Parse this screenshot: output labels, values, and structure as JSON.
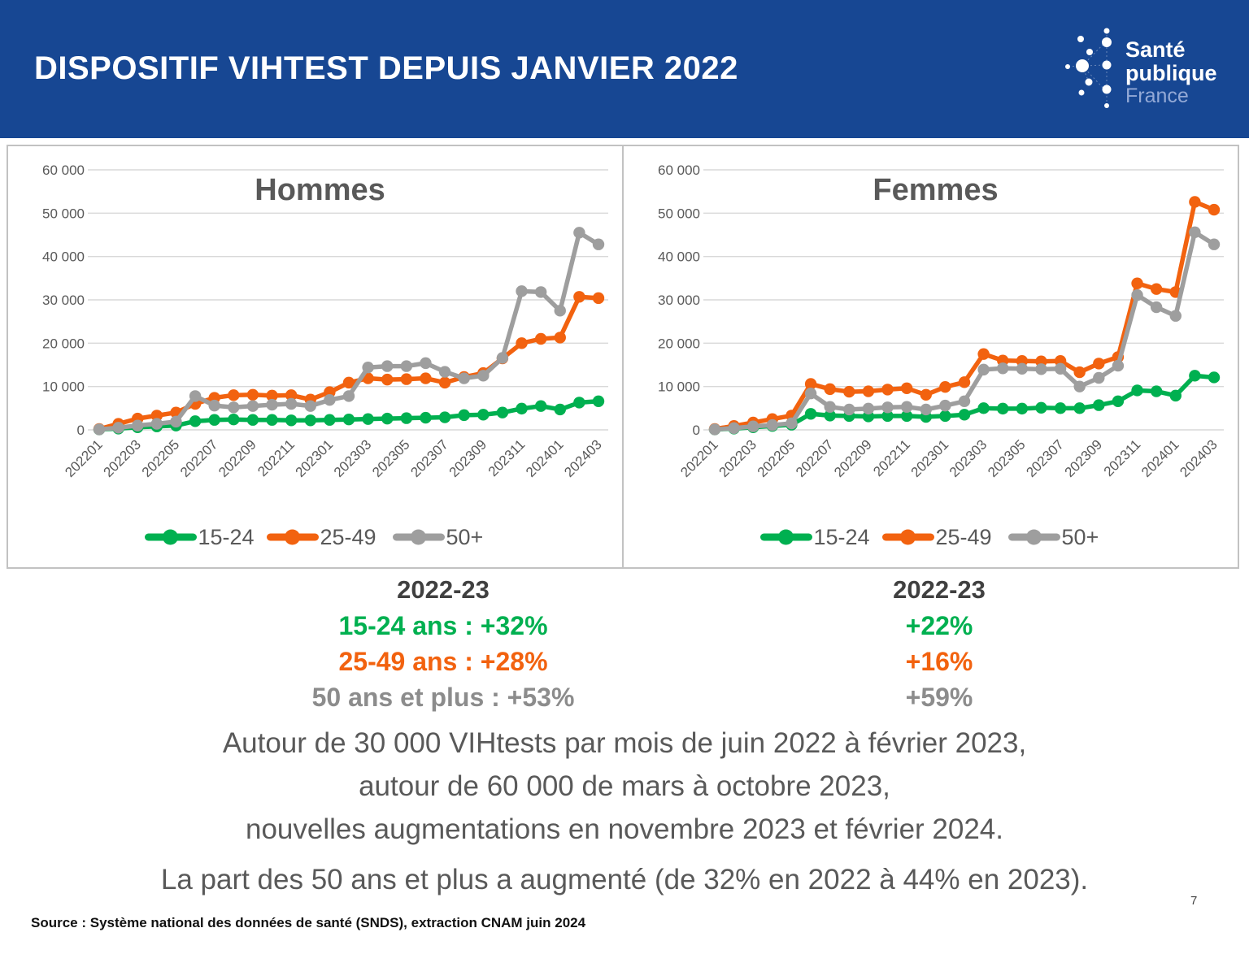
{
  "header": {
    "title": "DISPOSITIF VIHTEST DEPUIS JANVIER 2022",
    "logo": {
      "line1": "Santé",
      "line2": "publique",
      "line3": "France"
    }
  },
  "colors": {
    "header_bg": "#174793",
    "green": "#00b050",
    "orange": "#f2620f",
    "gray": "#9e9e9e",
    "axis_text": "#595959",
    "grid": "#d9d9d9",
    "logo_france": "#93a9d6"
  },
  "chart_data": [
    {
      "type": "line",
      "title": "Hommes",
      "x": [
        "202201",
        "202202",
        "202203",
        "202204",
        "202205",
        "202206",
        "202207",
        "202208",
        "202209",
        "202210",
        "202211",
        "202212",
        "202301",
        "202302",
        "202303",
        "202304",
        "202305",
        "202306",
        "202307",
        "202308",
        "202309",
        "202310",
        "202311",
        "202312",
        "202401",
        "202402",
        "202403"
      ],
      "x_tick_labels": [
        "202201",
        "202203",
        "202205",
        "202207",
        "202209",
        "202211",
        "202301",
        "202303",
        "202305",
        "202307",
        "202309",
        "202311",
        "202401",
        "202403"
      ],
      "ylim": [
        0,
        60000
      ],
      "ytick_step": 10000,
      "ytick_labels": [
        "0",
        "10 000",
        "20 000",
        "30 000",
        "40 000",
        "50 000",
        "60 000"
      ],
      "grid": true,
      "legend_position": "bottom",
      "series": [
        {
          "name": "15-24",
          "color_key": "green",
          "values": [
            100,
            300,
            600,
            800,
            1000,
            2000,
            2300,
            2400,
            2300,
            2300,
            2200,
            2200,
            2300,
            2400,
            2500,
            2600,
            2700,
            2800,
            2900,
            3400,
            3500,
            4000,
            4900,
            5500,
            4700,
            6300,
            6600
          ]
        },
        {
          "name": "25-49",
          "color_key": "orange",
          "values": [
            200,
            1400,
            2600,
            3300,
            4000,
            6000,
            7400,
            8000,
            8100,
            7900,
            8000,
            7000,
            8700,
            10900,
            11900,
            11600,
            11700,
            11900,
            10900,
            12200,
            13100,
            16500,
            20000,
            21000,
            21300,
            30700,
            30400
          ]
        },
        {
          "name": "50+",
          "color_key": "gray",
          "values": [
            100,
            500,
            1000,
            1400,
            1900,
            7800,
            5600,
            5200,
            5500,
            5800,
            6000,
            5500,
            6900,
            7800,
            14400,
            14700,
            14700,
            15400,
            13400,
            11900,
            12500,
            16600,
            32000,
            31800,
            27500,
            45500,
            42800
          ]
        }
      ]
    },
    {
      "type": "line",
      "title": "Femmes",
      "x": [
        "202201",
        "202202",
        "202203",
        "202204",
        "202205",
        "202206",
        "202207",
        "202208",
        "202209",
        "202210",
        "202211",
        "202212",
        "202301",
        "202302",
        "202303",
        "202304",
        "202305",
        "202306",
        "202307",
        "202308",
        "202309",
        "202310",
        "202311",
        "202312",
        "202401",
        "202402",
        "202403"
      ],
      "x_tick_labels": [
        "202201",
        "202203",
        "202205",
        "202207",
        "202209",
        "202211",
        "202301",
        "202303",
        "202305",
        "202307",
        "202309",
        "202311",
        "202401",
        "202403"
      ],
      "ylim": [
        0,
        60000
      ],
      "ytick_step": 10000,
      "ytick_labels": [
        "0",
        "10 000",
        "20 000",
        "30 000",
        "40 000",
        "50 000",
        "60 000"
      ],
      "grid": true,
      "legend_position": "bottom",
      "series": [
        {
          "name": "15-24",
          "color_key": "green",
          "values": [
            100,
            300,
            600,
            900,
            1200,
            3700,
            3300,
            3200,
            3100,
            3200,
            3200,
            3000,
            3200,
            3500,
            5000,
            4900,
            4900,
            5100,
            5000,
            5000,
            5700,
            6600,
            9100,
            8900,
            7900,
            12500,
            12100
          ]
        },
        {
          "name": "25-49",
          "color_key": "orange",
          "values": [
            200,
            900,
            1700,
            2500,
            3300,
            10600,
            9400,
            8800,
            8900,
            9300,
            9600,
            8100,
            9900,
            11000,
            17500,
            16000,
            15900,
            15800,
            15900,
            13300,
            15300,
            16800,
            33800,
            32500,
            31800,
            52600,
            50800
          ]
        },
        {
          "name": "50+",
          "color_key": "gray",
          "values": [
            100,
            400,
            800,
            1100,
            1500,
            8400,
            5300,
            4700,
            4900,
            5200,
            5300,
            4700,
            5600,
            6600,
            13900,
            14200,
            14100,
            14000,
            14100,
            10000,
            12000,
            14800,
            31100,
            28300,
            26300,
            45600,
            42800
          ]
        }
      ]
    }
  ],
  "stats": {
    "left": {
      "heading": "2022-23",
      "lines": [
        {
          "text": "15-24 ans : +32%",
          "color": "green"
        },
        {
          "text": "25-49 ans : +28%",
          "color": "orange"
        },
        {
          "text": "50 ans et plus : +53%",
          "color": "gray"
        }
      ]
    },
    "right": {
      "heading": "2022-23",
      "lines": [
        {
          "text": "+22%",
          "color": "green"
        },
        {
          "text": "+16%",
          "color": "orange"
        },
        {
          "text": "+59%",
          "color": "gray"
        }
      ]
    }
  },
  "body": {
    "lines": [
      "Autour de 30 000 VIHtests par mois de juin 2022 à février 2023,",
      "autour de 60 000 de mars à octobre 2023,",
      "nouvelles augmentations en novembre 2023 et février 2024."
    ],
    "last_line": "La part des 50 ans et plus a augmenté (de 32% en 2022 à 44% en 2023)."
  },
  "footer": {
    "page_number": "7",
    "source": "Source :  Système national des données de santé (SNDS), extraction CNAM juin 2024"
  }
}
